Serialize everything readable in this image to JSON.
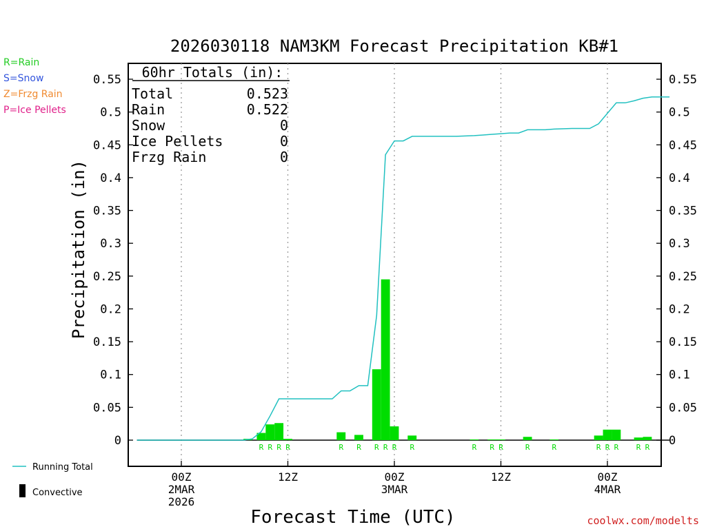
{
  "chart_data": {
    "type": "bar",
    "title": "2026030118 NAM3KM Forecast Precipitation KB#1",
    "xlabel": "Forecast Time (UTC)",
    "ylabel": "Precipitation (in)",
    "ylim": [
      -0.04,
      0.575
    ],
    "y_ticks": [
      0,
      0.05,
      0.1,
      0.15,
      0.2,
      0.25,
      0.3,
      0.35,
      0.4,
      0.45,
      0.5,
      0.55
    ],
    "y_tick_labels": [
      "0",
      "0.05",
      "0.1",
      "0.15",
      "0.2",
      "0.25",
      "0.3",
      "0.35",
      "0.4",
      "0.45",
      "0.5",
      "0.55"
    ],
    "x_range_hours": [
      -5,
      55
    ],
    "x_ticks": [
      {
        "hour": 0,
        "lines": [
          "00Z",
          "2MAR",
          "2026"
        ]
      },
      {
        "hour": 12,
        "lines": [
          "12Z"
        ]
      },
      {
        "hour": 24,
        "lines": [
          "00Z",
          "3MAR"
        ]
      },
      {
        "hour": 36,
        "lines": [
          "12Z"
        ]
      },
      {
        "hour": 48,
        "lines": [
          "00Z",
          "4MAR"
        ]
      }
    ],
    "type_legend": [
      {
        "label": "R=Rain",
        "color": "#22cc22"
      },
      {
        "label": "S=Snow",
        "color": "#3355dd"
      },
      {
        "label": "Z=Frzg Rain",
        "color": "#f08a30"
      },
      {
        "label": "P=Ice Pellets",
        "color": "#e0208a"
      }
    ],
    "totals": {
      "heading": "60hr Totals (in):",
      "rows": [
        {
          "label": "Total",
          "value": "0.523"
        },
        {
          "label": "Rain",
          "value": "0.522"
        },
        {
          "label": "Snow",
          "value": "0"
        },
        {
          "label": "Ice Pellets",
          "value": "0"
        },
        {
          "label": "Frzg Rain",
          "value": "0"
        }
      ]
    },
    "series_legend": [
      {
        "name": "Running Total",
        "kind": "line",
        "color": "#20c0c0"
      },
      {
        "name": "Convective",
        "kind": "bar",
        "color": "#000000"
      }
    ],
    "bars_color": "#00dd00",
    "line_color": "#20c0c0",
    "bars": [
      {
        "hour": 7.5,
        "value": 0.002,
        "type": ""
      },
      {
        "hour": 9.0,
        "value": 0.011,
        "type": "R"
      },
      {
        "hour": 10.0,
        "value": 0.024,
        "type": "R"
      },
      {
        "hour": 11.0,
        "value": 0.026,
        "type": "R"
      },
      {
        "hour": 12.0,
        "value": 0.002,
        "type": "R"
      },
      {
        "hour": 18.0,
        "value": 0.012,
        "type": "R"
      },
      {
        "hour": 20.0,
        "value": 0.008,
        "type": "R"
      },
      {
        "hour": 22.0,
        "value": 0.108,
        "type": "R"
      },
      {
        "hour": 23.0,
        "value": 0.245,
        "type": "R"
      },
      {
        "hour": 24.0,
        "value": 0.021,
        "type": "R"
      },
      {
        "hour": 26.0,
        "value": 0.007,
        "type": "R"
      },
      {
        "hour": 33.0,
        "value": 0.001,
        "type": "R"
      },
      {
        "hour": 35.0,
        "value": 0.001,
        "type": "R"
      },
      {
        "hour": 36.0,
        "value": 0.001,
        "type": "R"
      },
      {
        "hour": 39.0,
        "value": 0.005,
        "type": "R"
      },
      {
        "hour": 42.0,
        "value": 0.001,
        "type": "R"
      },
      {
        "hour": 47.0,
        "value": 0.007,
        "type": "R"
      },
      {
        "hour": 48.0,
        "value": 0.016,
        "type": "R"
      },
      {
        "hour": 49.0,
        "value": 0.016,
        "type": "R"
      },
      {
        "hour": 51.5,
        "value": 0.004,
        "type": "R"
      },
      {
        "hour": 52.5,
        "value": 0.005,
        "type": "R"
      }
    ],
    "running_total": {
      "x": [
        -5,
        7,
        8,
        9,
        10,
        11,
        12,
        13,
        15,
        17,
        18,
        19,
        20,
        21,
        22,
        23,
        24,
        25,
        26,
        29,
        31,
        33,
        34,
        35,
        36,
        37,
        38,
        39,
        41,
        42,
        44,
        45,
        46,
        47,
        48,
        49,
        50,
        51,
        52,
        53,
        55
      ],
      "y": [
        0,
        0,
        0.002,
        0.013,
        0.037,
        0.063,
        0.063,
        0.063,
        0.063,
        0.063,
        0.075,
        0.075,
        0.083,
        0.083,
        0.19,
        0.435,
        0.456,
        0.456,
        0.463,
        0.463,
        0.463,
        0.464,
        0.465,
        0.466,
        0.467,
        0.468,
        0.468,
        0.473,
        0.473,
        0.474,
        0.475,
        0.475,
        0.475,
        0.482,
        0.498,
        0.514,
        0.514,
        0.517,
        0.521,
        0.523,
        0.523
      ]
    }
  },
  "footer": {
    "site": "coolwx.com/modelts"
  }
}
